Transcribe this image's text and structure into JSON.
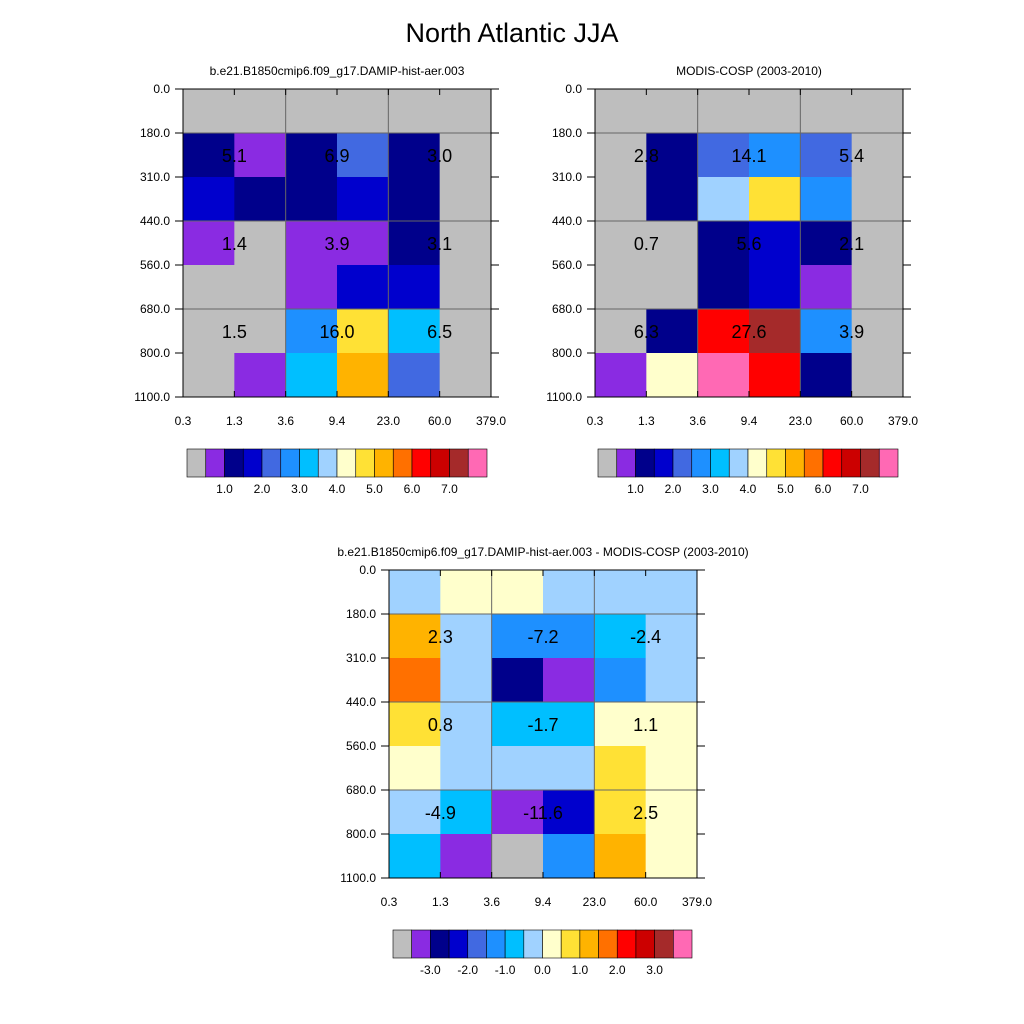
{
  "title": "North Atlantic JJA",
  "grid_color": "#666666",
  "nodata_color": "#bebebe",
  "axes": {
    "x_ticks": [
      "0.3",
      "1.3",
      "3.6",
      "9.4",
      "23.0",
      "60.0",
      "379.0"
    ],
    "y_ticks": [
      "0.0",
      "180.0",
      "310.0",
      "440.0",
      "560.0",
      "680.0",
      "800.0",
      "1100.0"
    ]
  },
  "colorbars": {
    "abs": {
      "colors": [
        "#bebebe",
        "#8a2be2",
        "#00008b",
        "#0000cd",
        "#4169e1",
        "#1e90ff",
        "#00bfff",
        "#a0d2ff",
        "#ffffcc",
        "#ffe135",
        "#ffb300",
        "#ff7000",
        "#ff0000",
        "#cc0000",
        "#a52a2a",
        "#ff69b4"
      ],
      "labels": [
        "1.0",
        "2.0",
        "3.0",
        "4.0",
        "5.0",
        "6.0",
        "7.0"
      ]
    },
    "diff": {
      "colors": [
        "#bebebe",
        "#8a2be2",
        "#00008b",
        "#0000cd",
        "#4169e1",
        "#1e90ff",
        "#00bfff",
        "#a0d2ff",
        "#ffffcc",
        "#ffe135",
        "#ffb300",
        "#ff7000",
        "#ff0000",
        "#cc0000",
        "#a52a2a",
        "#ff69b4"
      ],
      "labels": [
        "-3.0",
        "-2.0",
        "-1.0",
        "0.0",
        "1.0",
        "2.0",
        "3.0"
      ]
    }
  },
  "chart_data": [
    {
      "type": "heatmap",
      "title": "b.e21.B1850cmip6.f09_g17.DAMIP-hist-aer.003",
      "x_ticks": [
        "0.3",
        "1.3",
        "3.6",
        "9.4",
        "23.0",
        "60.0",
        "379.0"
      ],
      "y_ticks": [
        "0.0",
        "180.0",
        "310.0",
        "440.0",
        "560.0",
        "680.0",
        "800.0",
        "1100.0"
      ],
      "cells": [
        [
          "#bebebe",
          "#bebebe",
          "#bebebe",
          "#bebebe",
          "#bebebe",
          "#bebebe"
        ],
        [
          "#00008b",
          "#8a2be2",
          "#00008b",
          "#4169e1",
          "#00008b",
          "#bebebe"
        ],
        [
          "#0000cd",
          "#00008b",
          "#00008b",
          "#0000cd",
          "#00008b",
          "#bebebe"
        ],
        [
          "#8a2be2",
          "#bebebe",
          "#8a2be2",
          "#8a2be2",
          "#00008b",
          "#bebebe"
        ],
        [
          "#bebebe",
          "#bebebe",
          "#8a2be2",
          "#0000cd",
          "#0000cd",
          "#bebebe"
        ],
        [
          "#bebebe",
          "#bebebe",
          "#1e90ff",
          "#ffe135",
          "#00bfff",
          "#bebebe"
        ],
        [
          "#bebebe",
          "#8a2be2",
          "#00bfff",
          "#ffb300",
          "#4169e1",
          "#bebebe"
        ]
      ],
      "values": [
        {
          "label": "5.1",
          "col": 0,
          "row": 1
        },
        {
          "label": "6.9",
          "col": 1,
          "row": 1
        },
        {
          "label": "3.0",
          "col": 2,
          "row": 1
        },
        {
          "label": "1.4",
          "col": 0,
          "row": 2
        },
        {
          "label": "3.9",
          "col": 1,
          "row": 2
        },
        {
          "label": "3.1",
          "col": 2,
          "row": 2
        },
        {
          "label": "1.5",
          "col": 0,
          "row": 3
        },
        {
          "label": "16.0",
          "col": 1,
          "row": 3
        },
        {
          "label": "6.5",
          "col": 2,
          "row": 3
        }
      ],
      "colorbar": "abs"
    },
    {
      "type": "heatmap",
      "title": "MODIS-COSP (2003-2010)",
      "x_ticks": [
        "0.3",
        "1.3",
        "3.6",
        "9.4",
        "23.0",
        "60.0",
        "379.0"
      ],
      "y_ticks": [
        "0.0",
        "180.0",
        "310.0",
        "440.0",
        "560.0",
        "680.0",
        "800.0",
        "1100.0"
      ],
      "cells": [
        [
          "#bebebe",
          "#bebebe",
          "#bebebe",
          "#bebebe",
          "#bebebe",
          "#bebebe"
        ],
        [
          "#bebebe",
          "#00008b",
          "#4169e1",
          "#1e90ff",
          "#4169e1",
          "#bebebe"
        ],
        [
          "#bebebe",
          "#00008b",
          "#a0d2ff",
          "#ffe135",
          "#1e90ff",
          "#bebebe"
        ],
        [
          "#bebebe",
          "#bebebe",
          "#00008b",
          "#0000cd",
          "#00008b",
          "#bebebe"
        ],
        [
          "#bebebe",
          "#bebebe",
          "#00008b",
          "#0000cd",
          "#8a2be2",
          "#bebebe"
        ],
        [
          "#bebebe",
          "#00008b",
          "#ff0000",
          "#a52a2a",
          "#1e90ff",
          "#bebebe"
        ],
        [
          "#8a2be2",
          "#ffffcc",
          "#ff69b4",
          "#ff0000",
          "#00008b",
          "#bebebe"
        ]
      ],
      "values": [
        {
          "label": "2.8",
          "col": 0,
          "row": 1
        },
        {
          "label": "14.1",
          "col": 1,
          "row": 1
        },
        {
          "label": "5.4",
          "col": 2,
          "row": 1
        },
        {
          "label": "0.7",
          "col": 0,
          "row": 2
        },
        {
          "label": "5.6",
          "col": 1,
          "row": 2
        },
        {
          "label": "2.1",
          "col": 2,
          "row": 2
        },
        {
          "label": "6.3",
          "col": 0,
          "row": 3
        },
        {
          "label": "27.6",
          "col": 1,
          "row": 3
        },
        {
          "label": "3.9",
          "col": 2,
          "row": 3
        }
      ],
      "colorbar": "abs"
    },
    {
      "type": "heatmap",
      "title": "b.e21.B1850cmip6.f09_g17.DAMIP-hist-aer.003 - MODIS-COSP (2003-2010)",
      "x_ticks": [
        "0.3",
        "1.3",
        "3.6",
        "9.4",
        "23.0",
        "60.0",
        "379.0"
      ],
      "y_ticks": [
        "0.0",
        "180.0",
        "310.0",
        "440.0",
        "560.0",
        "680.0",
        "800.0",
        "1100.0"
      ],
      "cells": [
        [
          "#a0d2ff",
          "#ffffcc",
          "#ffffcc",
          "#a0d2ff",
          "#a0d2ff",
          "#a0d2ff"
        ],
        [
          "#ffb300",
          "#a0d2ff",
          "#1e90ff",
          "#1e90ff",
          "#00bfff",
          "#a0d2ff"
        ],
        [
          "#ff7000",
          "#a0d2ff",
          "#00008b",
          "#8a2be2",
          "#1e90ff",
          "#a0d2ff"
        ],
        [
          "#ffe135",
          "#a0d2ff",
          "#00bfff",
          "#00bfff",
          "#ffffcc",
          "#ffffcc"
        ],
        [
          "#ffffcc",
          "#a0d2ff",
          "#a0d2ff",
          "#a0d2ff",
          "#ffe135",
          "#ffffcc"
        ],
        [
          "#a0d2ff",
          "#00bfff",
          "#8a2be2",
          "#0000cd",
          "#ffe135",
          "#ffffcc"
        ],
        [
          "#00bfff",
          "#8a2be2",
          "#bebebe",
          "#1e90ff",
          "#ffb300",
          "#ffffcc"
        ]
      ],
      "values": [
        {
          "label": "2.3",
          "col": 0,
          "row": 1
        },
        {
          "label": "-7.2",
          "col": 1,
          "row": 1
        },
        {
          "label": "-2.4",
          "col": 2,
          "row": 1
        },
        {
          "label": "0.8",
          "col": 0,
          "row": 2
        },
        {
          "label": "-1.7",
          "col": 1,
          "row": 2
        },
        {
          "label": "1.1",
          "col": 2,
          "row": 2
        },
        {
          "label": "-4.9",
          "col": 0,
          "row": 3
        },
        {
          "label": "-11.6",
          "col": 1,
          "row": 3
        },
        {
          "label": "2.5",
          "col": 2,
          "row": 3
        }
      ],
      "colorbar": "diff"
    }
  ]
}
